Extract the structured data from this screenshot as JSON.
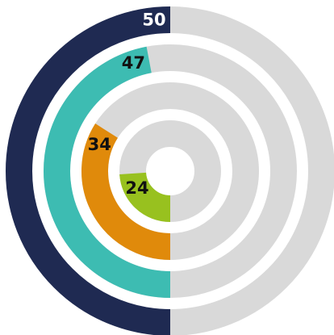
{
  "chart_data": {
    "type": "radial_bar",
    "values": [
      50,
      47,
      34,
      24
    ],
    "colors": [
      "#1f2a52",
      "#3dbcb2",
      "#e08a0b",
      "#98c11f"
    ],
    "label_colors": [
      "#ffffff",
      "#111111",
      "#111111",
      "#111111"
    ],
    "track_color": "#d9d9d9",
    "ylim": [
      0,
      100
    ]
  }
}
